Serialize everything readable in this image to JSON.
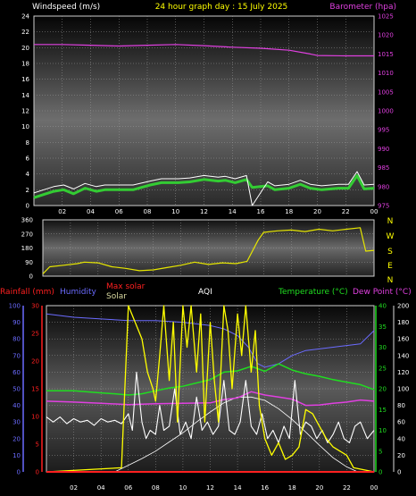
{
  "header": {
    "left_label": "Windspeed (m/s)",
    "title": "24 hour graph day : 15 July 2025",
    "right_label": "Barometer (hpa)"
  },
  "mid": {
    "compass": [
      "N",
      "W",
      "S",
      "E",
      "N"
    ]
  },
  "bottom_header": {
    "rainfall": "Rainfall (mm)",
    "humidity": "Humidity",
    "max_solar": "Max solar",
    "solar": "Solar",
    "aqi": "AQI",
    "temperature": "Temperature (°C)",
    "dew_point": "Dew Point (°C)"
  },
  "colors": {
    "wind": "#33cc33",
    "gust": "#ffffff",
    "barometer": "#e040e0",
    "direction": "#e6e600",
    "rain": "#ff2020",
    "humidity": "#6b6bff",
    "solar": "#ffff00",
    "max_solar": "#ffffff",
    "temperature": "#20dd20",
    "dew_point": "#e040e0",
    "aqi": "#ffffff",
    "title": "#ffff00"
  },
  "chart_data": [
    {
      "type": "line",
      "name": "wind_barometer",
      "x_ticks": [
        "02",
        "04",
        "06",
        "08",
        "10",
        "12",
        "14",
        "16",
        "18",
        "20",
        "22",
        "00"
      ],
      "ylim_left": [
        0,
        24
      ],
      "y_ticks_left": [
        "0",
        "2",
        "4",
        "6",
        "8",
        "10",
        "12",
        "14",
        "16",
        "18",
        "20",
        "22",
        "24"
      ],
      "ylim_right": [
        975,
        1025
      ],
      "y_ticks_right": [
        "975",
        "980",
        "985",
        "990",
        "995",
        "1000",
        "1005",
        "1010",
        "1015",
        "1020",
        "1025"
      ],
      "series": [
        {
          "key": "barometer",
          "axis": "right",
          "x": [
            0,
            2,
            4,
            6,
            8,
            10,
            12,
            14,
            16,
            18,
            19.5,
            20,
            22,
            24
          ],
          "y": [
            1017.5,
            1017.5,
            1017.3,
            1017.1,
            1017.3,
            1017.5,
            1017.2,
            1016.8,
            1016.5,
            1016.0,
            1015.0,
            1014.6,
            1014.5,
            1014.5
          ]
        },
        {
          "key": "wind",
          "axis": "left",
          "x": [
            0,
            0.7,
            1.4,
            2.1,
            2.8,
            3.6,
            4.4,
            5.0,
            6,
            7,
            8.2,
            9.0,
            10.2,
            11.0,
            12,
            13.0,
            13.5,
            14.2,
            15.0,
            15.4,
            16.5,
            17.0,
            18.0,
            18.8,
            19.5,
            20.3,
            21.5,
            22.2,
            22.8,
            23.3,
            24
          ],
          "y": [
            1.0,
            1.4,
            1.8,
            2.0,
            1.5,
            2.2,
            1.8,
            2.0,
            2.0,
            2.0,
            2.6,
            2.9,
            2.9,
            3.0,
            3.3,
            3.1,
            3.2,
            2.9,
            3.3,
            2.3,
            2.5,
            2.0,
            2.2,
            2.7,
            2.2,
            2.0,
            2.2,
            2.2,
            3.8,
            2.1,
            2.2
          ]
        },
        {
          "key": "gust",
          "axis": "left",
          "x": [
            0,
            0.7,
            1.4,
            2.1,
            2.8,
            3.6,
            4.4,
            5.0,
            6,
            7,
            8.2,
            9.0,
            10.2,
            11.0,
            12,
            13.0,
            13.5,
            14.2,
            15.0,
            15.4,
            16.5,
            17.0,
            18.0,
            18.8,
            19.5,
            20.3,
            21.5,
            22.2,
            22.8,
            23.3,
            24
          ],
          "y": [
            1.6,
            2.0,
            2.4,
            2.6,
            2.1,
            2.8,
            2.4,
            2.6,
            2.6,
            2.6,
            3.1,
            3.4,
            3.4,
            3.5,
            3.8,
            3.6,
            3.7,
            3.4,
            3.8,
            0.0,
            3.0,
            2.5,
            2.7,
            3.2,
            2.7,
            2.5,
            2.7,
            2.7,
            4.3,
            2.6,
            2.7
          ]
        }
      ]
    },
    {
      "type": "line",
      "name": "wind_direction",
      "ylim": [
        0,
        360
      ],
      "y_ticks": [
        "0",
        "90",
        "180",
        "270",
        "360"
      ],
      "series": [
        {
          "key": "direction",
          "x": [
            0,
            0.5,
            1.5,
            2.5,
            3.0,
            4.0,
            5.0,
            6.0,
            7.0,
            8.0,
            9.0,
            10.0,
            11.0,
            12.0,
            13.0,
            14.0,
            14.8,
            15.6,
            16.0,
            17.0,
            18.0,
            19.0,
            20.0,
            21.0,
            22.0,
            23.0,
            23.4,
            24
          ],
          "y": [
            15,
            60,
            70,
            80,
            90,
            85,
            60,
            50,
            35,
            40,
            55,
            70,
            90,
            75,
            85,
            80,
            95,
            230,
            280,
            290,
            295,
            285,
            300,
            290,
            300,
            310,
            160,
            165
          ]
        }
      ]
    },
    {
      "type": "line",
      "name": "solar_temperature",
      "y_ticks_rain": [
        "0",
        "5",
        "10",
        "15",
        "20",
        "25",
        "30"
      ],
      "y_ticks_humidity": [
        "0",
        "10",
        "20",
        "30",
        "40",
        "50",
        "60",
        "70",
        "80",
        "90",
        "100"
      ],
      "y_ticks_temperature": [
        "0",
        "5",
        "10",
        "15",
        "20",
        "25",
        "30",
        "35",
        "40"
      ],
      "y_ticks_solar": [
        "0",
        "20",
        "40",
        "60",
        "80",
        "100",
        "120",
        "140",
        "160",
        "180",
        "200"
      ],
      "series": [
        {
          "key": "rain",
          "axis": "rain",
          "x": [
            0,
            24
          ],
          "y": [
            0,
            0
          ]
        },
        {
          "key": "humidity",
          "axis": "humidity",
          "x": [
            0,
            2,
            4,
            6,
            8,
            10,
            12,
            13,
            14,
            14.8,
            15.5,
            16,
            17,
            18,
            19,
            20,
            21,
            22,
            23,
            24
          ],
          "y": [
            95,
            93,
            92,
            91,
            91,
            90,
            88,
            86,
            82,
            75,
            65,
            63,
            65,
            70,
            73,
            74,
            75,
            76,
            77,
            85
          ]
        },
        {
          "key": "temperature",
          "axis": "temperature",
          "x": [
            0,
            2,
            4,
            5,
            6,
            7,
            8,
            9,
            10,
            11,
            12,
            13,
            14,
            15,
            16,
            17,
            18,
            19,
            20,
            21,
            22,
            23,
            24
          ],
          "y": [
            19.5,
            19.5,
            19,
            18.8,
            18.5,
            18.8,
            19.5,
            20.2,
            20.6,
            21.4,
            22.2,
            24,
            24.3,
            25.4,
            24.2,
            26.0,
            24.5,
            23.6,
            23.0,
            22.2,
            21.6,
            21.0,
            19.8
          ]
        },
        {
          "key": "dew_point",
          "axis": "temperature",
          "x": [
            0,
            2,
            4,
            6,
            8,
            10,
            12,
            13,
            14,
            15,
            16,
            17,
            18,
            19,
            20,
            21,
            22,
            23,
            24
          ],
          "y": [
            17.0,
            16.8,
            16.5,
            16.2,
            16.4,
            16.5,
            16.6,
            17.4,
            17.8,
            19.3,
            18.5,
            18.0,
            17.5,
            16.0,
            16.1,
            16.5,
            16.8,
            17.3,
            17.0
          ]
        },
        {
          "key": "max_solar",
          "axis": "solar",
          "x": [
            5,
            6,
            7,
            8,
            9,
            10,
            11,
            12,
            13,
            14,
            15,
            16,
            17,
            18,
            19,
            20,
            21,
            22,
            22.8
          ],
          "y": [
            0,
            8,
            16,
            25,
            36,
            47,
            60,
            72,
            83,
            90,
            90,
            86,
            76,
            63,
            48,
            32,
            17,
            6,
            0
          ]
        },
        {
          "key": "solar",
          "axis": "solar",
          "x": [
            0,
            5.5,
            6.0,
            6.5,
            7.0,
            7.4,
            7.8,
            8.0,
            8.3,
            8.6,
            9.0,
            9.3,
            9.6,
            10.0,
            10.3,
            10.6,
            11.0,
            11.3,
            11.6,
            12.0,
            12.3,
            12.6,
            13.0,
            13.3,
            13.6,
            14.0,
            14.3,
            14.6,
            15.0,
            15.3,
            15.6,
            16.0,
            16.5,
            17.0,
            17.5,
            18.0,
            18.5,
            19.0,
            19.5,
            20.0,
            20.5,
            21.0,
            21.5,
            22.0,
            22.5,
            24
          ],
          "y": [
            0,
            5,
            200,
            180,
            160,
            120,
            100,
            85,
            140,
            200,
            110,
            180,
            60,
            200,
            150,
            200,
            120,
            190,
            60,
            180,
            110,
            60,
            200,
            170,
            100,
            190,
            140,
            200,
            120,
            170,
            80,
            40,
            20,
            35,
            15,
            20,
            30,
            75,
            70,
            55,
            40,
            30,
            25,
            20,
            5,
            0
          ]
        },
        {
          "key": "aqi",
          "axis": "solar",
          "x": [
            0,
            0.5,
            1,
            1.5,
            2,
            2.5,
            3,
            3.5,
            4,
            4.5,
            5,
            5.5,
            6,
            6.3,
            6.6,
            7.0,
            7.3,
            7.6,
            8.0,
            8.3,
            8.6,
            9.0,
            9.4,
            9.8,
            10.2,
            10.6,
            11.0,
            11.4,
            11.8,
            12.2,
            12.6,
            13.0,
            13.4,
            13.8,
            14.2,
            14.6,
            15.0,
            15.4,
            15.8,
            16.2,
            16.6,
            17.0,
            17.4,
            17.8,
            18.2,
            18.6,
            19.0,
            19.4,
            19.8,
            20.2,
            20.6,
            21.0,
            21.4,
            21.8,
            22.2,
            22.6,
            23.0,
            23.5,
            24
          ],
          "y": [
            66,
            60,
            66,
            58,
            64,
            60,
            62,
            56,
            64,
            60,
            62,
            58,
            70,
            50,
            120,
            60,
            40,
            50,
            45,
            80,
            50,
            55,
            100,
            45,
            60,
            40,
            90,
            50,
            60,
            45,
            55,
            110,
            50,
            45,
            60,
            110,
            55,
            45,
            70,
            40,
            50,
            35,
            55,
            40,
            110,
            45,
            60,
            55,
            40,
            50,
            35,
            45,
            60,
            40,
            35,
            55,
            60,
            40,
            50
          ]
        }
      ]
    }
  ]
}
